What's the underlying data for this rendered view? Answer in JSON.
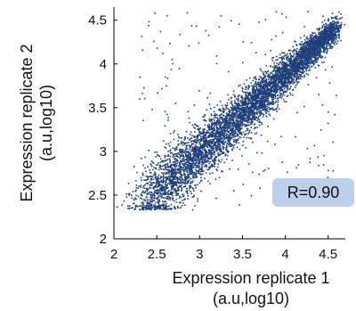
{
  "chart_data": {
    "type": "scatter",
    "title": "",
    "xlabel": [
      "Expression replicate 1",
      "(a.u,log10)"
    ],
    "ylabel": [
      "Expression replicate 2",
      "(a.u,log10)"
    ],
    "xlim": [
      2,
      4.7
    ],
    "ylim": [
      2,
      4.65
    ],
    "xticks": [
      "2",
      "2.5",
      "3",
      "3.5",
      "4",
      "4.5"
    ],
    "yticks": [
      "2",
      "2.5",
      "3",
      "3.5",
      "4",
      "4.5"
    ],
    "grid": false,
    "point_color": "#1f3f7a",
    "annotation": {
      "text": "R=0.90",
      "box_color": "#bcd0ec"
    },
    "trend": {
      "slope": 0.9,
      "intercept": 0.28
    },
    "series": [
      {
        "description": "approximate: dense cloud of several thousand genes along the diagonal, R=0.90",
        "x": [
          2.35,
          2.42,
          2.5,
          2.55,
          2.6,
          2.7,
          2.75,
          2.8,
          2.9,
          3.0,
          3.05,
          3.1,
          3.2,
          3.3,
          3.4,
          3.5,
          3.6,
          3.7,
          3.8,
          3.9,
          4.0,
          4.1,
          4.2,
          4.3,
          4.4,
          4.5,
          4.55,
          2.48,
          2.62,
          2.68,
          3.25,
          2.6,
          2.3,
          3.4,
          4.45,
          4.5
        ],
        "y": [
          2.36,
          2.45,
          2.55,
          2.58,
          2.62,
          2.7,
          2.8,
          2.85,
          2.9,
          3.0,
          3.05,
          3.08,
          3.2,
          3.28,
          3.38,
          3.45,
          3.55,
          3.65,
          3.72,
          3.85,
          3.95,
          4.05,
          4.15,
          4.25,
          4.4,
          4.5,
          4.58,
          4.58,
          4.55,
          4.05,
          4.55,
          3.85,
          3.6,
          2.55,
          2.65,
          3.45
        ]
      }
    ]
  }
}
